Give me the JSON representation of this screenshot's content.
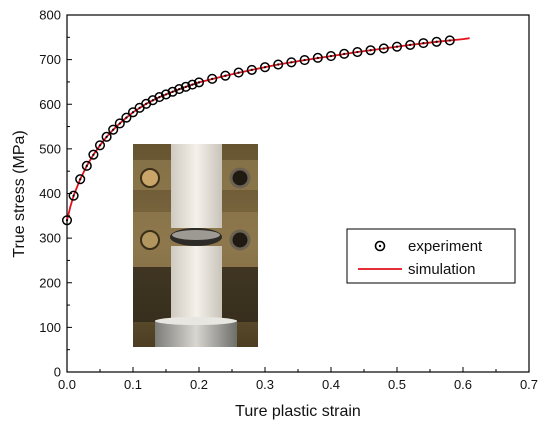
{
  "chart_data": {
    "type": "scatter",
    "xlabel": "Ture plastic strain",
    "ylabel": "True stress (MPa)",
    "xlim": [
      0.0,
      0.7
    ],
    "ylim": [
      0,
      800
    ],
    "x_ticks": [
      "0.0",
      "0.1",
      "0.2",
      "0.3",
      "0.4",
      "0.5",
      "0.6",
      "0.7"
    ],
    "y_ticks": [
      "0",
      "100",
      "200",
      "300",
      "400",
      "500",
      "600",
      "700",
      "800"
    ],
    "grid": false,
    "legend_position": "middle-right",
    "series": [
      {
        "name": "experiment",
        "marker": "open-circle-with-dot",
        "color": "#000000",
        "x": [
          0.0,
          0.01,
          0.02,
          0.03,
          0.04,
          0.05,
          0.06,
          0.07,
          0.08,
          0.09,
          0.1,
          0.11,
          0.12,
          0.13,
          0.14,
          0.15,
          0.16,
          0.17,
          0.18,
          0.19,
          0.2,
          0.22,
          0.24,
          0.26,
          0.28,
          0.3,
          0.32,
          0.34,
          0.36,
          0.38,
          0.4,
          0.42,
          0.44,
          0.46,
          0.48,
          0.5,
          0.52,
          0.54,
          0.56,
          0.58
        ],
        "y": [
          340,
          395,
          432,
          462,
          487,
          508,
          527,
          543,
          557,
          570,
          582,
          592,
          601,
          609,
          616,
          622,
          628,
          634,
          639,
          644,
          649,
          657,
          664,
          671,
          677,
          683,
          689,
          694,
          699,
          704,
          708,
          713,
          717,
          721,
          725,
          729,
          733,
          737,
          740,
          743
        ]
      },
      {
        "name": "simulation",
        "line": true,
        "color": "#e3111b",
        "x": [
          0.0,
          0.005,
          0.01,
          0.02,
          0.03,
          0.04,
          0.05,
          0.06,
          0.07,
          0.08,
          0.09,
          0.1,
          0.12,
          0.14,
          0.16,
          0.18,
          0.2,
          0.24,
          0.28,
          0.32,
          0.36,
          0.4,
          0.44,
          0.48,
          0.52,
          0.56,
          0.6,
          0.61
        ],
        "y": [
          340,
          370,
          395,
          432,
          462,
          487,
          508,
          527,
          543,
          557,
          570,
          582,
          601,
          616,
          628,
          639,
          649,
          664,
          677,
          689,
          699,
          708,
          717,
          725,
          733,
          740,
          746,
          748
        ]
      }
    ],
    "inset": {
      "description_icon": "photo-of-specimen-in-compression-grips"
    }
  }
}
